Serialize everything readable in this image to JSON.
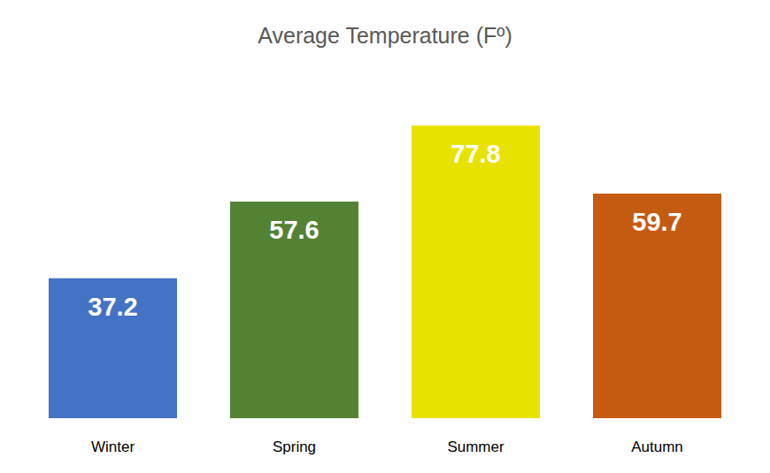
{
  "chart_data": {
    "type": "bar",
    "title": "Average Temperature (Fº)",
    "categories": [
      "Winter",
      "Spring",
      "Summer",
      "Autumn"
    ],
    "values": [
      37.2,
      57.6,
      77.8,
      59.7
    ],
    "colors": [
      "#4472c4",
      "#548235",
      "#e8e200",
      "#c55a11"
    ],
    "ylim": [
      0,
      90
    ],
    "grid": false,
    "data_labels": true,
    "tick_labels": "x"
  }
}
